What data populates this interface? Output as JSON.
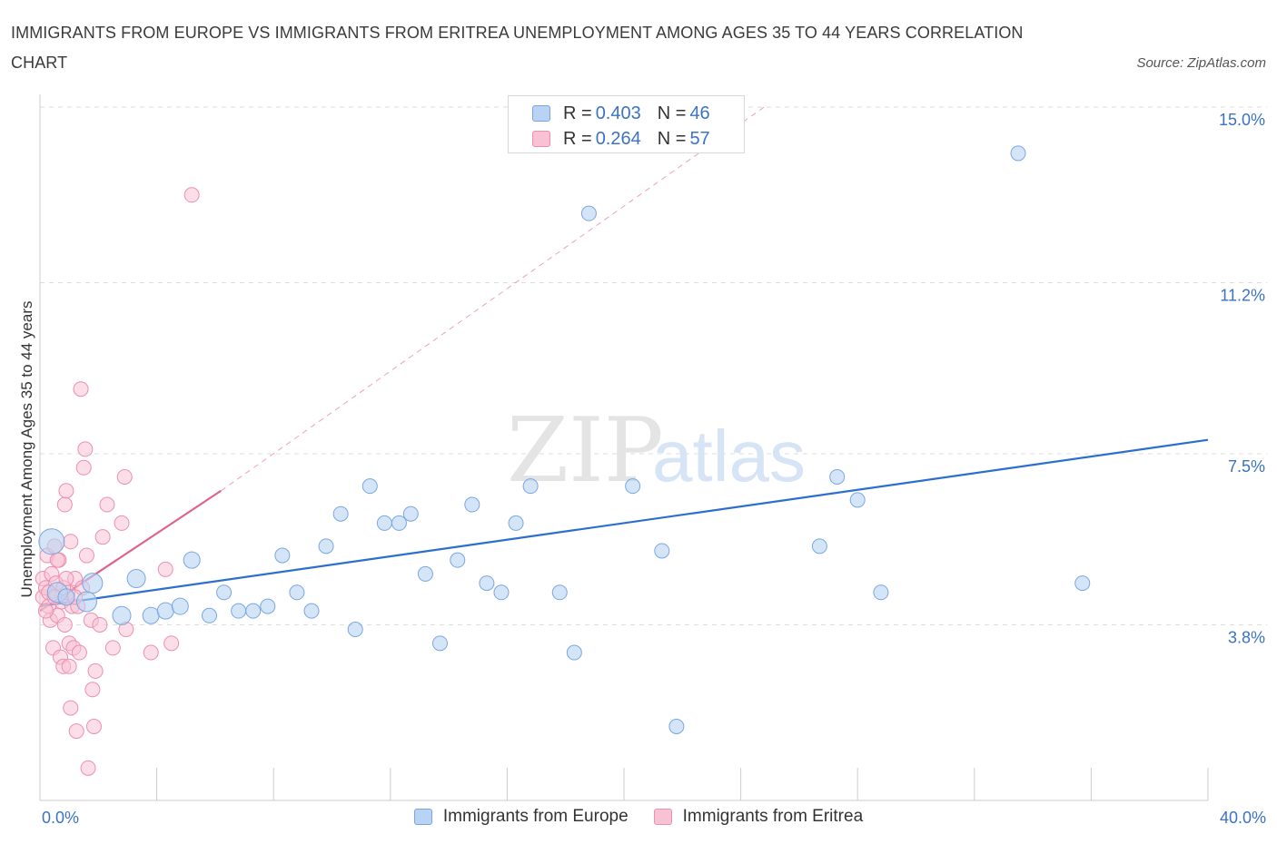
{
  "title": "IMMIGRANTS FROM EUROPE VS IMMIGRANTS FROM ERITREA UNEMPLOYMENT AMONG AGES 35 TO 44 YEARS CORRELATION CHART",
  "source": "Source: ZipAtlas.com",
  "watermark": {
    "zip": "ZIP",
    "atlas": "atlas"
  },
  "colors": {
    "europe_fill": "#b9d3f4",
    "europe_stroke": "#7aa6e0",
    "europe_line": "#2b6fce",
    "eritrea_fill": "#f8c2d4",
    "eritrea_stroke": "#ec8fb0",
    "eritrea_line": "#e0628f",
    "axis_label": "#3b72c4",
    "grid": "#dddddd"
  },
  "legend": {
    "europe": {
      "r_label": "R = ",
      "r_value": "0.403",
      "n_label": "N = ",
      "n_value": "46",
      "name": "Immigrants from Europe"
    },
    "eritrea": {
      "r_label": "R = ",
      "r_value": "0.264",
      "n_label": "N = ",
      "n_value": "57",
      "name": "Immigrants from Eritrea"
    }
  },
  "chart_data": {
    "type": "scatter",
    "title": "IMMIGRANTS FROM EUROPE VS IMMIGRANTS FROM ERITREA UNEMPLOYMENT AMONG AGES 35 TO 44 YEARS CORRELATION CHART",
    "xlabel": "",
    "ylabel": "Unemployment Among Ages 35 to 44 years",
    "xlim": [
      0,
      40
    ],
    "ylim": [
      0,
      15
    ],
    "x_tick_labels": [
      "0.0%",
      "40.0%"
    ],
    "y_ticks": [
      3.8,
      7.5,
      11.2,
      15.0
    ],
    "y_tick_labels": [
      "3.8%",
      "7.5%",
      "11.2%",
      "15.0%"
    ],
    "grid": true,
    "legend_position": "top-center",
    "series": [
      {
        "name": "Immigrants from Europe",
        "trend": {
          "x": [
            0,
            40
          ],
          "y": [
            4.2,
            7.8
          ]
        },
        "points": [
          {
            "x": 0.4,
            "y": 5.6,
            "s": 14
          },
          {
            "x": 0.6,
            "y": 4.5,
            "s": 11
          },
          {
            "x": 1.8,
            "y": 4.7,
            "s": 11
          },
          {
            "x": 1.6,
            "y": 4.3,
            "s": 11
          },
          {
            "x": 2.8,
            "y": 4.0,
            "s": 10
          },
          {
            "x": 3.3,
            "y": 4.8,
            "s": 10
          },
          {
            "x": 3.8,
            "y": 4.0,
            "s": 9
          },
          {
            "x": 4.3,
            "y": 4.1,
            "s": 9
          },
          {
            "x": 4.8,
            "y": 4.2,
            "s": 9
          },
          {
            "x": 5.2,
            "y": 5.2,
            "s": 9
          },
          {
            "x": 5.8,
            "y": 4.0,
            "s": 8
          },
          {
            "x": 6.3,
            "y": 4.5,
            "s": 8
          },
          {
            "x": 6.8,
            "y": 4.1,
            "s": 8
          },
          {
            "x": 7.3,
            "y": 4.1,
            "s": 8
          },
          {
            "x": 7.8,
            "y": 4.2,
            "s": 8
          },
          {
            "x": 8.3,
            "y": 5.3,
            "s": 8
          },
          {
            "x": 8.8,
            "y": 4.5,
            "s": 8
          },
          {
            "x": 9.3,
            "y": 4.1,
            "s": 8
          },
          {
            "x": 9.8,
            "y": 5.5,
            "s": 8
          },
          {
            "x": 10.3,
            "y": 6.2,
            "s": 8
          },
          {
            "x": 10.8,
            "y": 3.7,
            "s": 8
          },
          {
            "x": 11.3,
            "y": 6.8,
            "s": 8
          },
          {
            "x": 11.8,
            "y": 6.0,
            "s": 8
          },
          {
            "x": 12.3,
            "y": 6.0,
            "s": 8
          },
          {
            "x": 12.7,
            "y": 6.2,
            "s": 8
          },
          {
            "x": 13.2,
            "y": 4.9,
            "s": 8
          },
          {
            "x": 13.7,
            "y": 3.4,
            "s": 8
          },
          {
            "x": 14.3,
            "y": 5.2,
            "s": 8
          },
          {
            "x": 14.8,
            "y": 6.4,
            "s": 8
          },
          {
            "x": 15.3,
            "y": 4.7,
            "s": 8
          },
          {
            "x": 15.8,
            "y": 4.5,
            "s": 8
          },
          {
            "x": 16.3,
            "y": 6.0,
            "s": 8
          },
          {
            "x": 16.8,
            "y": 6.8,
            "s": 8
          },
          {
            "x": 17.8,
            "y": 4.5,
            "s": 8
          },
          {
            "x": 18.3,
            "y": 3.2,
            "s": 8
          },
          {
            "x": 18.8,
            "y": 12.7,
            "s": 8
          },
          {
            "x": 20.3,
            "y": 6.8,
            "s": 8
          },
          {
            "x": 21.3,
            "y": 5.4,
            "s": 8
          },
          {
            "x": 21.8,
            "y": 1.6,
            "s": 8
          },
          {
            "x": 26.7,
            "y": 5.5,
            "s": 8
          },
          {
            "x": 27.3,
            "y": 7.0,
            "s": 8
          },
          {
            "x": 28.0,
            "y": 6.5,
            "s": 8
          },
          {
            "x": 28.8,
            "y": 4.5,
            "s": 8
          },
          {
            "x": 33.5,
            "y": 14.0,
            "s": 8
          },
          {
            "x": 35.7,
            "y": 4.7,
            "s": 8
          },
          {
            "x": 0.9,
            "y": 4.4,
            "s": 9
          }
        ]
      },
      {
        "name": "Immigrants from Eritrea",
        "trend": {
          "x": [
            0,
            6.2
          ],
          "y": [
            4.1,
            6.7
          ]
        },
        "trend_extended": {
          "x": [
            6.2,
            24.8
          ],
          "y": [
            6.7,
            15.0
          ]
        },
        "points": [
          {
            "x": 0.1,
            "y": 4.8,
            "s": 8
          },
          {
            "x": 0.1,
            "y": 4.4,
            "s": 8
          },
          {
            "x": 0.2,
            "y": 4.6,
            "s": 8
          },
          {
            "x": 0.25,
            "y": 5.3,
            "s": 8
          },
          {
            "x": 0.3,
            "y": 4.2,
            "s": 8
          },
          {
            "x": 0.35,
            "y": 3.9,
            "s": 8
          },
          {
            "x": 0.4,
            "y": 4.9,
            "s": 8
          },
          {
            "x": 0.45,
            "y": 3.3,
            "s": 8
          },
          {
            "x": 0.5,
            "y": 5.5,
            "s": 8
          },
          {
            "x": 0.55,
            "y": 4.7,
            "s": 8
          },
          {
            "x": 0.6,
            "y": 4.0,
            "s": 8
          },
          {
            "x": 0.65,
            "y": 5.2,
            "s": 8
          },
          {
            "x": 0.7,
            "y": 3.1,
            "s": 8
          },
          {
            "x": 0.75,
            "y": 4.3,
            "s": 8
          },
          {
            "x": 0.8,
            "y": 2.9,
            "s": 8
          },
          {
            "x": 0.85,
            "y": 3.8,
            "s": 8
          },
          {
            "x": 0.85,
            "y": 6.4,
            "s": 8
          },
          {
            "x": 0.9,
            "y": 6.7,
            "s": 8
          },
          {
            "x": 0.95,
            "y": 4.5,
            "s": 8
          },
          {
            "x": 1.0,
            "y": 3.4,
            "s": 8
          },
          {
            "x": 1.05,
            "y": 5.6,
            "s": 8
          },
          {
            "x": 1.05,
            "y": 2.0,
            "s": 8
          },
          {
            "x": 1.1,
            "y": 4.2,
            "s": 8
          },
          {
            "x": 1.15,
            "y": 3.3,
            "s": 8
          },
          {
            "x": 1.2,
            "y": 4.8,
            "s": 8
          },
          {
            "x": 1.25,
            "y": 1.5,
            "s": 8
          },
          {
            "x": 1.3,
            "y": 4.2,
            "s": 8
          },
          {
            "x": 1.35,
            "y": 3.2,
            "s": 8
          },
          {
            "x": 1.4,
            "y": 8.9,
            "s": 8
          },
          {
            "x": 1.45,
            "y": 4.6,
            "s": 8
          },
          {
            "x": 1.5,
            "y": 7.2,
            "s": 8
          },
          {
            "x": 1.55,
            "y": 7.6,
            "s": 8
          },
          {
            "x": 1.6,
            "y": 5.3,
            "s": 8
          },
          {
            "x": 1.65,
            "y": 0.7,
            "s": 8
          },
          {
            "x": 1.75,
            "y": 3.9,
            "s": 8
          },
          {
            "x": 1.8,
            "y": 2.4,
            "s": 8
          },
          {
            "x": 1.85,
            "y": 1.6,
            "s": 8
          },
          {
            "x": 1.9,
            "y": 2.8,
            "s": 8
          },
          {
            "x": 2.05,
            "y": 3.8,
            "s": 8
          },
          {
            "x": 2.15,
            "y": 5.7,
            "s": 8
          },
          {
            "x": 2.3,
            "y": 6.4,
            "s": 8
          },
          {
            "x": 2.5,
            "y": 3.3,
            "s": 8
          },
          {
            "x": 2.8,
            "y": 6.0,
            "s": 8
          },
          {
            "x": 2.9,
            "y": 7.0,
            "s": 8
          },
          {
            "x": 2.95,
            "y": 3.7,
            "s": 8
          },
          {
            "x": 3.8,
            "y": 3.2,
            "s": 8
          },
          {
            "x": 4.3,
            "y": 5.0,
            "s": 8
          },
          {
            "x": 4.5,
            "y": 3.4,
            "s": 8
          },
          {
            "x": 5.2,
            "y": 13.1,
            "s": 8
          },
          {
            "x": 0.2,
            "y": 4.1,
            "s": 8
          },
          {
            "x": 0.6,
            "y": 5.2,
            "s": 8
          },
          {
            "x": 0.8,
            "y": 4.6,
            "s": 8
          },
          {
            "x": 1.0,
            "y": 2.9,
            "s": 8
          },
          {
            "x": 0.3,
            "y": 4.5,
            "s": 8
          },
          {
            "x": 0.9,
            "y": 4.8,
            "s": 8
          },
          {
            "x": 1.2,
            "y": 4.4,
            "s": 8
          },
          {
            "x": 0.5,
            "y": 4.4,
            "s": 8
          }
        ]
      }
    ]
  }
}
